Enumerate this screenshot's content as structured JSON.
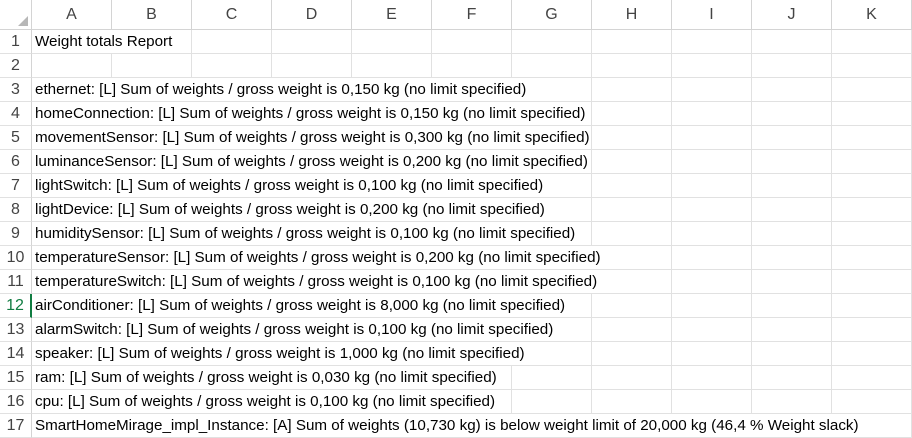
{
  "columns": [
    "A",
    "B",
    "C",
    "D",
    "E",
    "F",
    "G",
    "H",
    "I",
    "J",
    "K"
  ],
  "selected_row": 12,
  "rows": [
    {
      "num": "1",
      "text": "Weight totals Report"
    },
    {
      "num": "2",
      "text": ""
    },
    {
      "num": "3",
      "text": "ethernet: [L] Sum of weights / gross weight is 0,150 kg (no limit specified)"
    },
    {
      "num": "4",
      "text": "homeConnection: [L] Sum of weights / gross weight is 0,150 kg (no limit specified)"
    },
    {
      "num": "5",
      "text": "movementSensor: [L] Sum of weights / gross weight is 0,300 kg (no limit specified)"
    },
    {
      "num": "6",
      "text": "luminanceSensor: [L] Sum of weights / gross weight is 0,200 kg (no limit specified)"
    },
    {
      "num": "7",
      "text": "lightSwitch: [L] Sum of weights / gross weight is 0,100 kg (no limit specified)"
    },
    {
      "num": "8",
      "text": "lightDevice: [L] Sum of weights / gross weight is 0,200 kg (no limit specified)"
    },
    {
      "num": "9",
      "text": "humiditySensor: [L] Sum of weights / gross weight is 0,100 kg (no limit specified)"
    },
    {
      "num": "10",
      "text": "temperatureSensor: [L] Sum of weights / gross weight is 0,200 kg (no limit specified)"
    },
    {
      "num": "11",
      "text": "temperatureSwitch: [L] Sum of weights / gross weight is 0,100 kg (no limit specified)"
    },
    {
      "num": "12",
      "text": "airConditioner: [L] Sum of weights / gross weight is 8,000 kg (no limit specified)"
    },
    {
      "num": "13",
      "text": "alarmSwitch: [L] Sum of weights / gross weight is 0,100 kg (no limit specified)"
    },
    {
      "num": "14",
      "text": "speaker: [L] Sum of weights / gross weight is 1,000 kg (no limit specified)"
    },
    {
      "num": "15",
      "text": "ram: [L] Sum of weights / gross weight is 0,030 kg (no limit specified)"
    },
    {
      "num": "16",
      "text": "cpu: [L] Sum of weights / gross weight is 0,100 kg (no limit specified)"
    },
    {
      "num": "17",
      "text": "SmartHomeMirage_impl_Instance: [A] Sum of weights (10,730 kg) is below weight limit of 20,000 kg (46,4 % Weight slack)"
    }
  ],
  "colors": {
    "selection_accent": "#107c41",
    "gridline": "#e1e1e1",
    "header_text": "#444444"
  }
}
